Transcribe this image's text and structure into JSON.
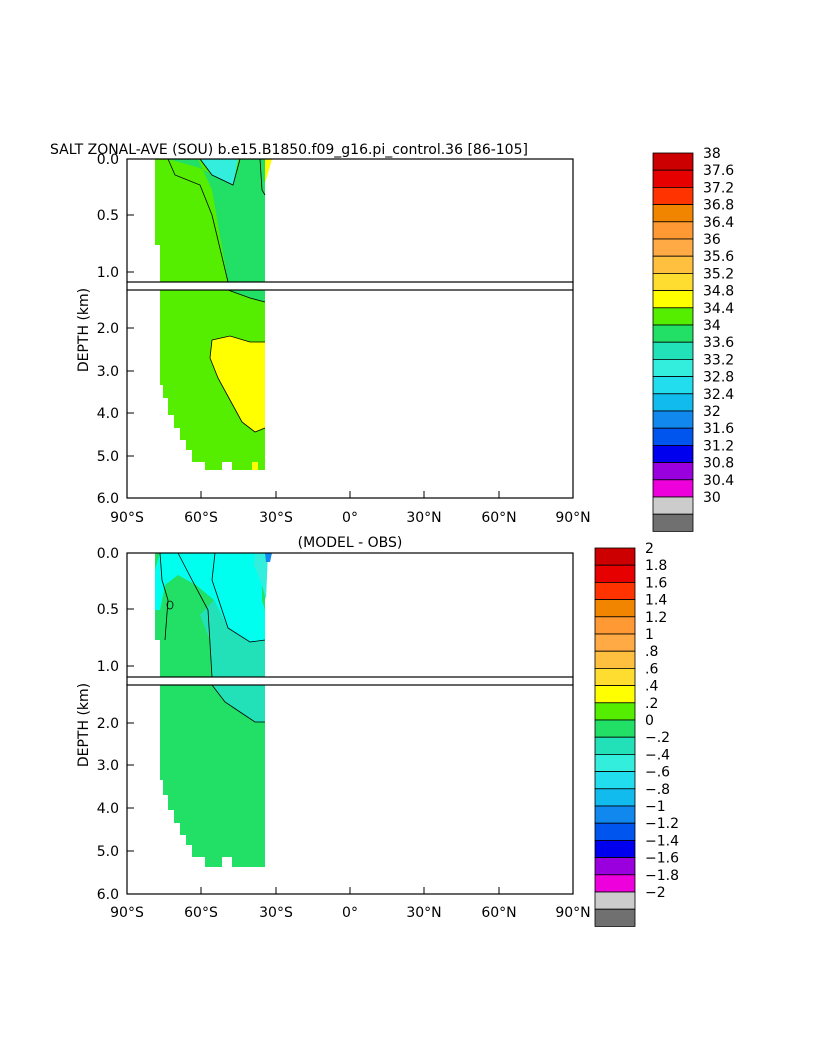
{
  "chart_data": [
    {
      "type": "heatmap",
      "title": "SALT ZONAL-AVE (SOU) b.e15.B1850.f09_g16.pi_control.36 [86-105]",
      "subtitle": "",
      "ylabel": "DEPTH (km)",
      "xlabel": "",
      "x_ticks": [
        "90°S",
        "60°S",
        "30°S",
        "0°",
        "30°N",
        "60°N",
        "90°N"
      ],
      "y_ticks_upper": [
        "0.0",
        "0.5",
        "1.0"
      ],
      "y_ticks_lower": [
        "2.0",
        "3.0",
        "4.0",
        "5.0",
        "6.0"
      ],
      "xlim": [
        -90,
        90
      ],
      "ylim": [
        6.0,
        0.0
      ],
      "colorbar_labels": [
        "38",
        "37.6",
        "37.2",
        "36.8",
        "36.4",
        "36",
        "35.6",
        "35.2",
        "34.8",
        "34.4",
        "34",
        "33.6",
        "33.2",
        "32.8",
        "32.4",
        "32",
        "31.6",
        "31.2",
        "30.8",
        "30.4",
        "30"
      ],
      "colorbar_colors": [
        "#cc0000",
        "#e60000",
        "#ff3300",
        "#f28500",
        "#ff9933",
        "#ffaa44",
        "#ffc040",
        "#ffdd30",
        "#ffff00",
        "#55ee00",
        "#22e066",
        "#22e0b8",
        "#33eedd",
        "#22ddee",
        "#11bbee",
        "#1188ee",
        "#0055ee",
        "#0000ee",
        "#9900dd",
        "#ee00dd",
        "#cccccc",
        "#707070"
      ]
    },
    {
      "type": "heatmap",
      "title": "(MODEL - OBS)",
      "ylabel": "DEPTH (km)",
      "xlabel": "",
      "x_ticks": [
        "90°S",
        "60°S",
        "30°S",
        "0°",
        "30°N",
        "60°N",
        "90°N"
      ],
      "y_ticks_upper": [
        "0.0",
        "0.5",
        "1.0"
      ],
      "y_ticks_lower": [
        "2.0",
        "3.0",
        "4.0",
        "5.0",
        "6.0"
      ],
      "xlim": [
        -90,
        90
      ],
      "ylim": [
        6.0,
        0.0
      ],
      "colorbar_labels": [
        "2",
        "1.8",
        "1.6",
        "1.4",
        "1.2",
        "1",
        ".8",
        ".6",
        ".4",
        ".2",
        "0",
        "−.2",
        "−.4",
        "−.6",
        "−.8",
        "−1",
        "−1.2",
        "−1.4",
        "−1.6",
        "−1.8",
        "−2"
      ],
      "colorbar_colors": [
        "#cc0000",
        "#e60000",
        "#ff3300",
        "#f28500",
        "#ff9933",
        "#ffaa44",
        "#ffc040",
        "#ffdd30",
        "#ffff00",
        "#55ee00",
        "#22e066",
        "#22e0b8",
        "#33eedd",
        "#22ddee",
        "#11bbee",
        "#1188ee",
        "#0055ee",
        "#0000ee",
        "#9900dd",
        "#ee00dd",
        "#cccccc",
        "#707070"
      ]
    }
  ]
}
